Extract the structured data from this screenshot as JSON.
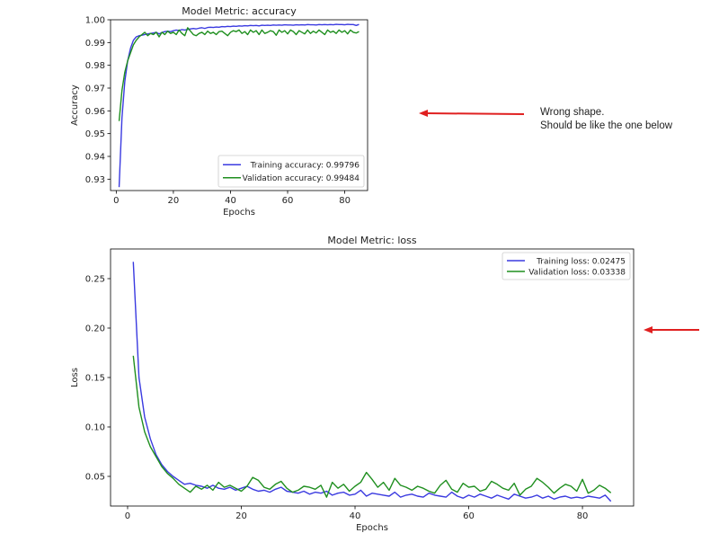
{
  "annotation": {
    "line1": "Wrong shape.",
    "line2": "Should be like the one below",
    "arrow_color": "#e02020"
  },
  "colors": {
    "training": "#3a3ae0",
    "validation": "#1f8f1f"
  },
  "chart_data": [
    {
      "type": "line",
      "title": "Model Metric: accuracy",
      "xlabel": "Epochs",
      "ylabel": "Accuracy",
      "xlim": [
        -2,
        88
      ],
      "ylim": [
        0.925,
        1.0
      ],
      "xticks": [
        0,
        20,
        40,
        60,
        80
      ],
      "yticks": [
        0.93,
        0.94,
        0.95,
        0.96,
        0.97,
        0.98,
        0.99,
        1.0
      ],
      "ytick_labels": [
        "0.93",
        "0.94",
        "0.95",
        "0.96",
        "0.97",
        "0.98",
        "0.99",
        "1.00"
      ],
      "legend": "lower-right",
      "series": [
        {
          "name": "Training accuracy: 0.99796",
          "x": [
            1,
            2,
            3,
            4,
            5,
            6,
            7,
            8,
            9,
            10,
            11,
            12,
            13,
            14,
            15,
            16,
            17,
            18,
            19,
            20,
            21,
            22,
            23,
            24,
            25,
            26,
            27,
            28,
            29,
            30,
            31,
            32,
            33,
            34,
            35,
            36,
            37,
            38,
            39,
            40,
            41,
            42,
            43,
            44,
            45,
            46,
            47,
            48,
            49,
            50,
            51,
            52,
            53,
            54,
            55,
            56,
            57,
            58,
            59,
            60,
            61,
            62,
            63,
            64,
            65,
            66,
            67,
            68,
            69,
            70,
            71,
            72,
            73,
            74,
            75,
            76,
            77,
            78,
            79,
            80,
            81,
            82,
            83,
            84,
            85
          ],
          "y": [
            0.9265,
            0.957,
            0.973,
            0.982,
            0.9875,
            0.991,
            0.9925,
            0.993,
            0.9932,
            0.9935,
            0.9938,
            0.994,
            0.9942,
            0.9945,
            0.9938,
            0.9944,
            0.9948,
            0.995,
            0.9948,
            0.9952,
            0.9955,
            0.9953,
            0.9957,
            0.9955,
            0.9958,
            0.996,
            0.9962,
            0.996,
            0.9963,
            0.9965,
            0.9962,
            0.9966,
            0.9967,
            0.9966,
            0.9968,
            0.9967,
            0.997,
            0.9969,
            0.9971,
            0.997,
            0.9972,
            0.9971,
            0.9973,
            0.9972,
            0.9974,
            0.9973,
            0.9975,
            0.9974,
            0.9975,
            0.9973,
            0.9976,
            0.9975,
            0.9976,
            0.9975,
            0.9977,
            0.9976,
            0.9977,
            0.9976,
            0.9978,
            0.9977,
            0.9977,
            0.9976,
            0.9978,
            0.9977,
            0.9978,
            0.9977,
            0.9979,
            0.9978,
            0.9978,
            0.9977,
            0.9979,
            0.9978,
            0.9979,
            0.9978,
            0.9979,
            0.9978,
            0.998,
            0.9979,
            0.9979,
            0.9978,
            0.998,
            0.9979,
            0.9979,
            0.9975,
            0.99796
          ]
        },
        {
          "name": "Validation accuracy: 0.99484",
          "x": [
            1,
            2,
            3,
            4,
            5,
            6,
            7,
            8,
            9,
            10,
            11,
            12,
            13,
            14,
            15,
            16,
            17,
            18,
            19,
            20,
            21,
            22,
            23,
            24,
            25,
            26,
            27,
            28,
            29,
            30,
            31,
            32,
            33,
            34,
            35,
            36,
            37,
            38,
            39,
            40,
            41,
            42,
            43,
            44,
            45,
            46,
            47,
            48,
            49,
            50,
            51,
            52,
            53,
            54,
            55,
            56,
            57,
            58,
            59,
            60,
            61,
            62,
            63,
            64,
            65,
            66,
            67,
            68,
            69,
            70,
            71,
            72,
            73,
            74,
            75,
            76,
            77,
            78,
            79,
            80,
            81,
            82,
            83,
            84,
            85
          ],
          "y": [
            0.9555,
            0.969,
            0.977,
            0.982,
            0.9855,
            0.989,
            0.991,
            0.9925,
            0.9935,
            0.9945,
            0.993,
            0.994,
            0.9935,
            0.9945,
            0.9925,
            0.9945,
            0.9935,
            0.995,
            0.994,
            0.9945,
            0.9935,
            0.9955,
            0.994,
            0.993,
            0.9965,
            0.995,
            0.9935,
            0.993,
            0.994,
            0.9945,
            0.9935,
            0.995,
            0.994,
            0.9945,
            0.9935,
            0.9948,
            0.995,
            0.994,
            0.993,
            0.9945,
            0.9952,
            0.9948,
            0.9955,
            0.994,
            0.9948,
            0.9935,
            0.9955,
            0.9945,
            0.9952,
            0.9935,
            0.9955,
            0.994,
            0.9945,
            0.9952,
            0.9948,
            0.9932,
            0.9955,
            0.9945,
            0.9952,
            0.9938,
            0.9955,
            0.9948,
            0.9935,
            0.9952,
            0.9945,
            0.9938,
            0.9955,
            0.994,
            0.995,
            0.9942,
            0.9955,
            0.9945,
            0.9935,
            0.9955,
            0.9945,
            0.995,
            0.994,
            0.9955,
            0.9945,
            0.9952,
            0.9938,
            0.9955,
            0.9945,
            0.9942,
            0.99484
          ]
        }
      ]
    },
    {
      "type": "line",
      "title": "Model Metric: loss",
      "xlabel": "Epochs",
      "ylabel": "Loss",
      "xlim": [
        -3,
        89
      ],
      "ylim": [
        0.02,
        0.28
      ],
      "xticks": [
        0,
        20,
        40,
        60,
        80
      ],
      "yticks": [
        0.05,
        0.1,
        0.15,
        0.2,
        0.25
      ],
      "ytick_labels": [
        "0.05",
        "0.10",
        "0.15",
        "0.20",
        "0.25"
      ],
      "legend": "top-right",
      "series": [
        {
          "name": "Training loss: 0.02475",
          "x": [
            1,
            2,
            3,
            4,
            5,
            6,
            7,
            8,
            9,
            10,
            11,
            12,
            13,
            14,
            15,
            16,
            17,
            18,
            19,
            20,
            21,
            22,
            23,
            24,
            25,
            26,
            27,
            28,
            29,
            30,
            31,
            32,
            33,
            34,
            35,
            36,
            37,
            38,
            39,
            40,
            41,
            42,
            43,
            44,
            45,
            46,
            47,
            48,
            49,
            50,
            51,
            52,
            53,
            54,
            55,
            56,
            57,
            58,
            59,
            60,
            61,
            62,
            63,
            64,
            65,
            66,
            67,
            68,
            69,
            70,
            71,
            72,
            73,
            74,
            75,
            76,
            77,
            78,
            79,
            80,
            81,
            82,
            83,
            84,
            85
          ],
          "y": [
            0.267,
            0.15,
            0.11,
            0.088,
            0.072,
            0.062,
            0.055,
            0.05,
            0.046,
            0.042,
            0.043,
            0.041,
            0.04,
            0.038,
            0.041,
            0.038,
            0.037,
            0.039,
            0.036,
            0.038,
            0.04,
            0.037,
            0.035,
            0.036,
            0.034,
            0.037,
            0.039,
            0.035,
            0.034,
            0.033,
            0.035,
            0.032,
            0.034,
            0.033,
            0.035,
            0.031,
            0.033,
            0.034,
            0.031,
            0.032,
            0.036,
            0.03,
            0.033,
            0.032,
            0.031,
            0.03,
            0.034,
            0.029,
            0.031,
            0.032,
            0.03,
            0.029,
            0.033,
            0.031,
            0.03,
            0.029,
            0.034,
            0.03,
            0.028,
            0.031,
            0.029,
            0.032,
            0.03,
            0.028,
            0.031,
            0.029,
            0.027,
            0.032,
            0.03,
            0.028,
            0.029,
            0.031,
            0.028,
            0.03,
            0.027,
            0.029,
            0.03,
            0.028,
            0.029,
            0.028,
            0.03,
            0.029,
            0.028,
            0.031,
            0.02475
          ]
        },
        {
          "name": "Validation loss: 0.03338",
          "x": [
            1,
            2,
            3,
            4,
            5,
            6,
            7,
            8,
            9,
            10,
            11,
            12,
            13,
            14,
            15,
            16,
            17,
            18,
            19,
            20,
            21,
            22,
            23,
            24,
            25,
            26,
            27,
            28,
            29,
            30,
            31,
            32,
            33,
            34,
            35,
            36,
            37,
            38,
            39,
            40,
            41,
            42,
            43,
            44,
            45,
            46,
            47,
            48,
            49,
            50,
            51,
            52,
            53,
            54,
            55,
            56,
            57,
            58,
            59,
            60,
            61,
            62,
            63,
            64,
            65,
            66,
            67,
            68,
            69,
            70,
            71,
            72,
            73,
            74,
            75,
            76,
            77,
            78,
            79,
            80,
            81,
            82,
            83,
            84,
            85
          ],
          "y": [
            0.172,
            0.12,
            0.095,
            0.08,
            0.07,
            0.06,
            0.053,
            0.048,
            0.042,
            0.038,
            0.034,
            0.04,
            0.037,
            0.041,
            0.036,
            0.044,
            0.039,
            0.041,
            0.038,
            0.035,
            0.04,
            0.049,
            0.046,
            0.039,
            0.037,
            0.042,
            0.045,
            0.038,
            0.034,
            0.036,
            0.04,
            0.039,
            0.037,
            0.041,
            0.029,
            0.044,
            0.038,
            0.042,
            0.035,
            0.04,
            0.044,
            0.054,
            0.047,
            0.039,
            0.044,
            0.036,
            0.048,
            0.041,
            0.039,
            0.036,
            0.04,
            0.038,
            0.035,
            0.033,
            0.041,
            0.046,
            0.037,
            0.034,
            0.043,
            0.039,
            0.04,
            0.035,
            0.037,
            0.045,
            0.042,
            0.038,
            0.036,
            0.043,
            0.031,
            0.037,
            0.04,
            0.048,
            0.044,
            0.039,
            0.033,
            0.038,
            0.042,
            0.04,
            0.035,
            0.047,
            0.033,
            0.036,
            0.041,
            0.038,
            0.03338
          ]
        }
      ]
    }
  ]
}
